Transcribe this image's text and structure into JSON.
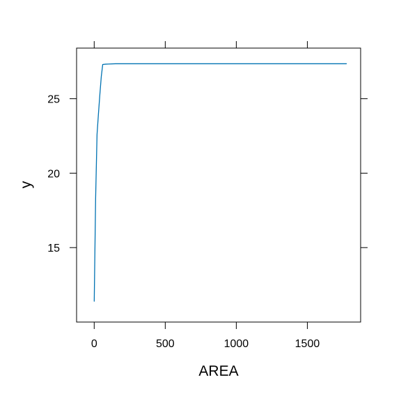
{
  "chart_data": {
    "type": "line",
    "title": "",
    "xlabel": "AREA",
    "ylabel": "y",
    "xlim": [
      -124,
      1875
    ],
    "ylim": [
      10.0,
      28.4
    ],
    "x_ticks": [
      0,
      500,
      1000,
      1500
    ],
    "y_ticks": [
      15,
      20,
      25
    ],
    "grid": false,
    "legend": "none",
    "series": [
      {
        "color": "#0072B2",
        "x": [
          0.2,
          10,
          20,
          30,
          40,
          50,
          60,
          80,
          100,
          150,
          200,
          300,
          500,
          800,
          1000,
          1200,
          1500,
          1775
        ],
        "y": [
          11.4,
          18.3,
          22.6,
          24.0,
          25.3,
          26.5,
          27.3,
          27.32,
          27.33,
          27.35,
          27.35,
          27.35,
          27.35,
          27.35,
          27.35,
          27.35,
          27.35,
          27.35
        ]
      }
    ]
  }
}
